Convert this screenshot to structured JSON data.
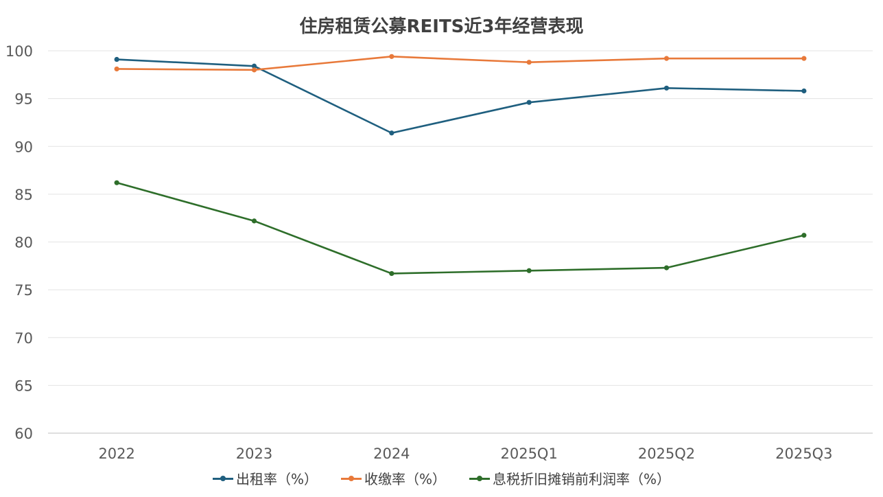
{
  "chart_data": {
    "type": "line",
    "title": "住房租赁公募REITS近3年经营表现",
    "categories": [
      "2022",
      "2023",
      "2024",
      "2025Q1",
      "2025Q2",
      "2025Q3"
    ],
    "ylim": [
      60,
      100
    ],
    "yticks": [
      "60",
      "65",
      "70",
      "75",
      "80",
      "85",
      "90",
      "95",
      "100"
    ],
    "grid": true,
    "legend_position": "bottom",
    "series": [
      {
        "name": "出租率（%）",
        "color": "#1f5f7f",
        "values": [
          99.1,
          98.4,
          91.4,
          94.6,
          96.1,
          95.8
        ]
      },
      {
        "name": "收缴率（%）",
        "color": "#e8793a",
        "values": [
          98.1,
          98.0,
          99.4,
          98.8,
          99.2,
          99.2
        ]
      },
      {
        "name": "息税折旧摊销前利润率（%）",
        "color": "#2e6e2a",
        "values": [
          86.2,
          82.2,
          76.7,
          77.0,
          77.3,
          80.7
        ]
      }
    ]
  }
}
